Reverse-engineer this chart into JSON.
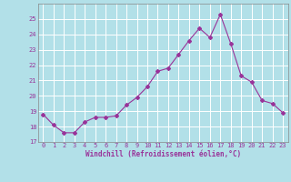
{
  "x": [
    0,
    1,
    2,
    3,
    4,
    5,
    6,
    7,
    8,
    9,
    10,
    11,
    12,
    13,
    14,
    15,
    16,
    17,
    18,
    19,
    20,
    21,
    22,
    23
  ],
  "y": [
    18.8,
    18.1,
    17.6,
    17.6,
    18.3,
    18.6,
    18.6,
    18.7,
    19.4,
    19.9,
    20.6,
    21.6,
    21.8,
    22.7,
    23.6,
    24.4,
    23.8,
    25.3,
    23.4,
    21.3,
    20.9,
    19.7,
    19.5,
    18.9
  ],
  "line_color": "#993399",
  "marker": "D",
  "marker_size": 2,
  "bg_color": "#b2e0e8",
  "grid_color": "#ffffff",
  "xlabel": "Windchill (Refroidissement éolien,°C)",
  "xlabel_color": "#993399",
  "tick_color": "#993399",
  "ylim": [
    17,
    26
  ],
  "xlim": [
    -0.5,
    23.5
  ],
  "yticks": [
    17,
    18,
    19,
    20,
    21,
    22,
    23,
    24,
    25
  ],
  "xticks": [
    0,
    1,
    2,
    3,
    4,
    5,
    6,
    7,
    8,
    9,
    10,
    11,
    12,
    13,
    14,
    15,
    16,
    17,
    18,
    19,
    20,
    21,
    22,
    23
  ]
}
